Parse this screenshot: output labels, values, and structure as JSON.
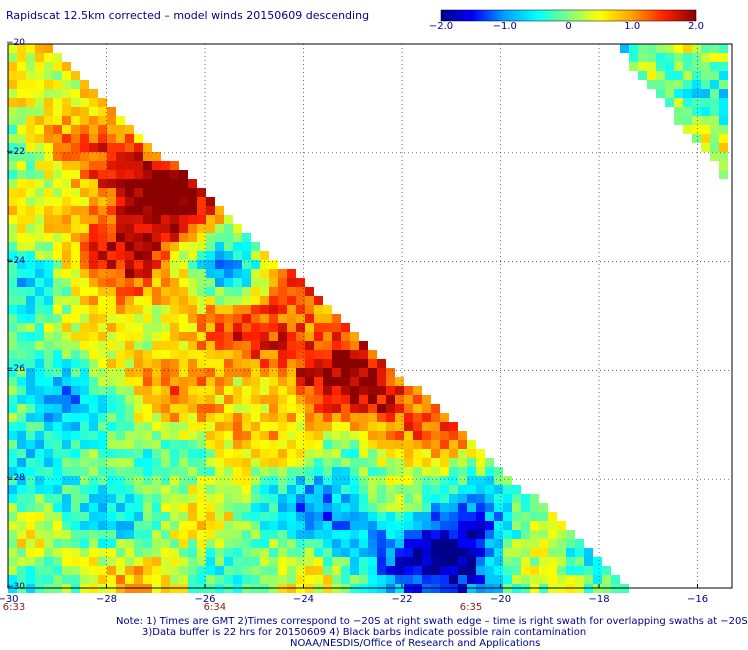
{
  "title": "Rapidscat 12.5km corrected – model winds 20150609 descending",
  "colorbar": {
    "labels": [
      "−2.0",
      "−1.0",
      "0",
      "1.0",
      "2.0"
    ],
    "values": [
      -2.0,
      -1.0,
      0,
      1.0,
      2.0
    ],
    "range": [
      -2.0,
      2.0
    ],
    "colors": [
      "#00008b",
      "#0000ff",
      "#00a0ff",
      "#00ffff",
      "#80ff80",
      "#ffff00",
      "#ffa000",
      "#ff2000",
      "#8b0000"
    ]
  },
  "map": {
    "lon_ticks": [
      "−30",
      "−28",
      "−26",
      "−24",
      "−22",
      "−20",
      "−18",
      "−16"
    ],
    "lat_ticks": [
      "−20",
      "−22",
      "−24",
      "−26",
      "−28",
      "−30"
    ],
    "lon_range": [
      -30,
      -15.3
    ],
    "lat_range": [
      -30,
      -20
    ],
    "time_labels": [
      {
        "text": "6:33",
        "lon": -30
      },
      {
        "text": "6:34",
        "lon": -25.8
      },
      {
        "text": "6:35",
        "lon": -20.6
      }
    ],
    "grid": "dotted"
  },
  "notes": {
    "line1": "Note: 1) Times are GMT 2)Times correspond to −20S at right swath edge – time is right swath for overlapping swaths at −20S",
    "line2": "3)Data buffer is 22 hrs for 20150609 4) Black barbs indicate possible rain contamination",
    "credit": "NOAA/NESDIS/Office of Research and Applications"
  }
}
